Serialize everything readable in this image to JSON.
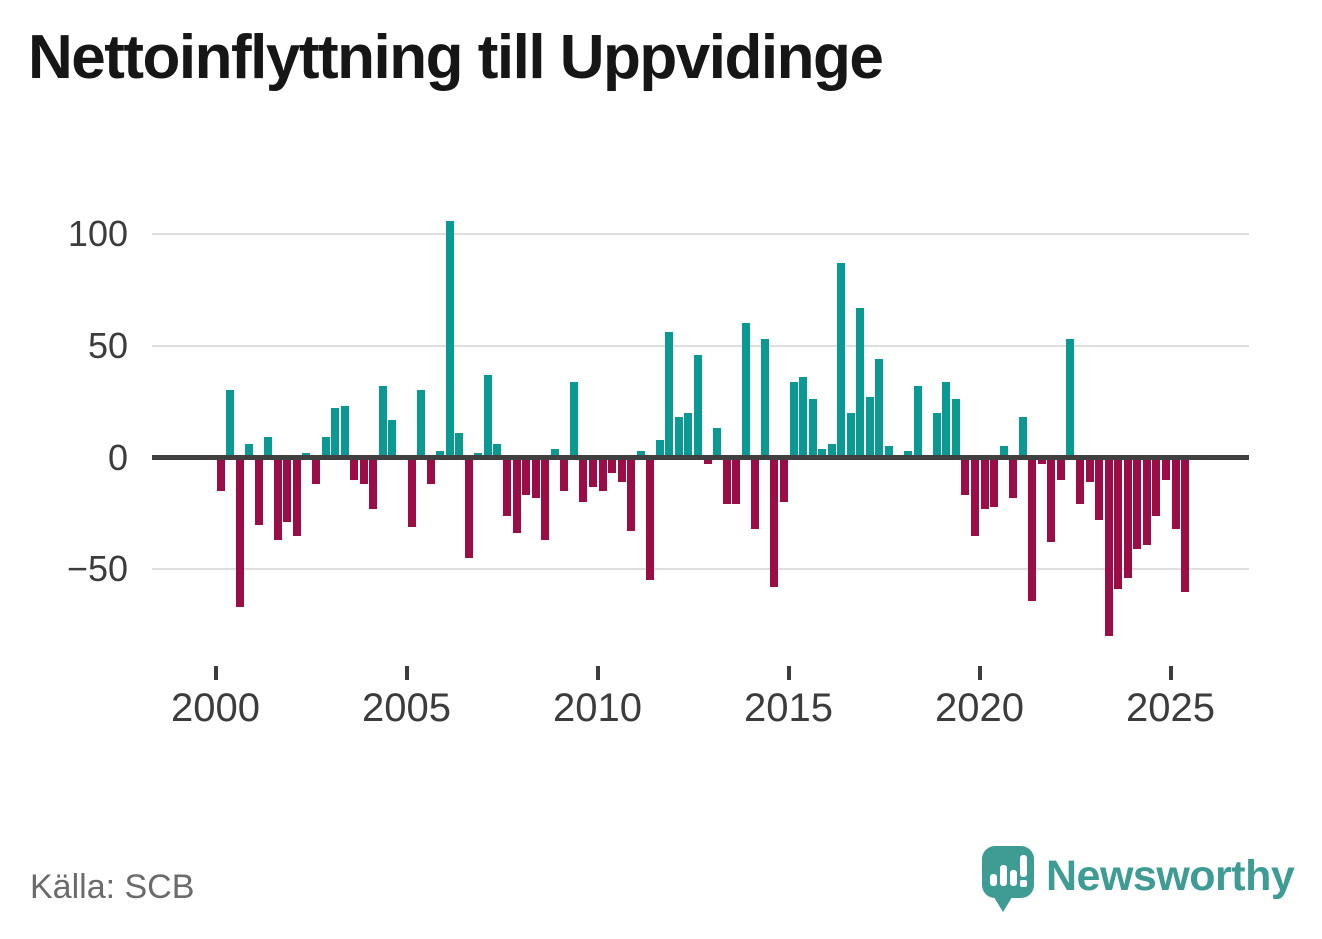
{
  "chart_data": {
    "type": "bar",
    "title": "Nettoinflyttning till Uppvidinge",
    "source": "Källa: SCB",
    "frequency": "quarterly",
    "series_start": "2000Q1",
    "values": [
      -15,
      30,
      -67,
      6,
      -30,
      9,
      -37,
      -29,
      -35,
      2,
      -12,
      9,
      22,
      23,
      -10,
      -12,
      -23,
      32,
      17,
      0,
      -31,
      30,
      -12,
      3,
      106,
      11,
      -45,
      2,
      37,
      6,
      -26,
      -34,
      -17,
      -18,
      -37,
      4,
      -15,
      34,
      -20,
      -13,
      -15,
      -7,
      -11,
      -33,
      3,
      -55,
      8,
      56,
      18,
      20,
      46,
      -3,
      13,
      -21,
      -21,
      60,
      -32,
      53,
      -58,
      -20,
      34,
      36,
      26,
      4,
      6,
      87,
      20,
      67,
      27,
      44,
      5,
      0,
      3,
      32,
      0,
      20,
      34,
      26,
      -17,
      -35,
      -23,
      -22,
      5,
      -18,
      18,
      -64,
      -3,
      -38,
      -10,
      53,
      -21,
      -11,
      -28,
      -80,
      -59,
      -54,
      -41,
      -39,
      -26,
      -10,
      -32,
      -60
    ],
    "x_tick_years": [
      "2000",
      "2005",
      "2010",
      "2015",
      "2020",
      "2025"
    ],
    "y_ticks": [
      100,
      50,
      0,
      -50
    ],
    "ylim": [
      -88,
      112
    ],
    "legend": "none",
    "grid": "horizontal",
    "colors": {
      "positive": "#0b9a93",
      "negative": "#9c0c45",
      "zero_axis": "#404040",
      "gridline": "#dedede",
      "axis_text": "#3c3c3c",
      "brand_teal": "#3e9c95"
    }
  },
  "branding": {
    "wordmark": "Newsworthy"
  }
}
